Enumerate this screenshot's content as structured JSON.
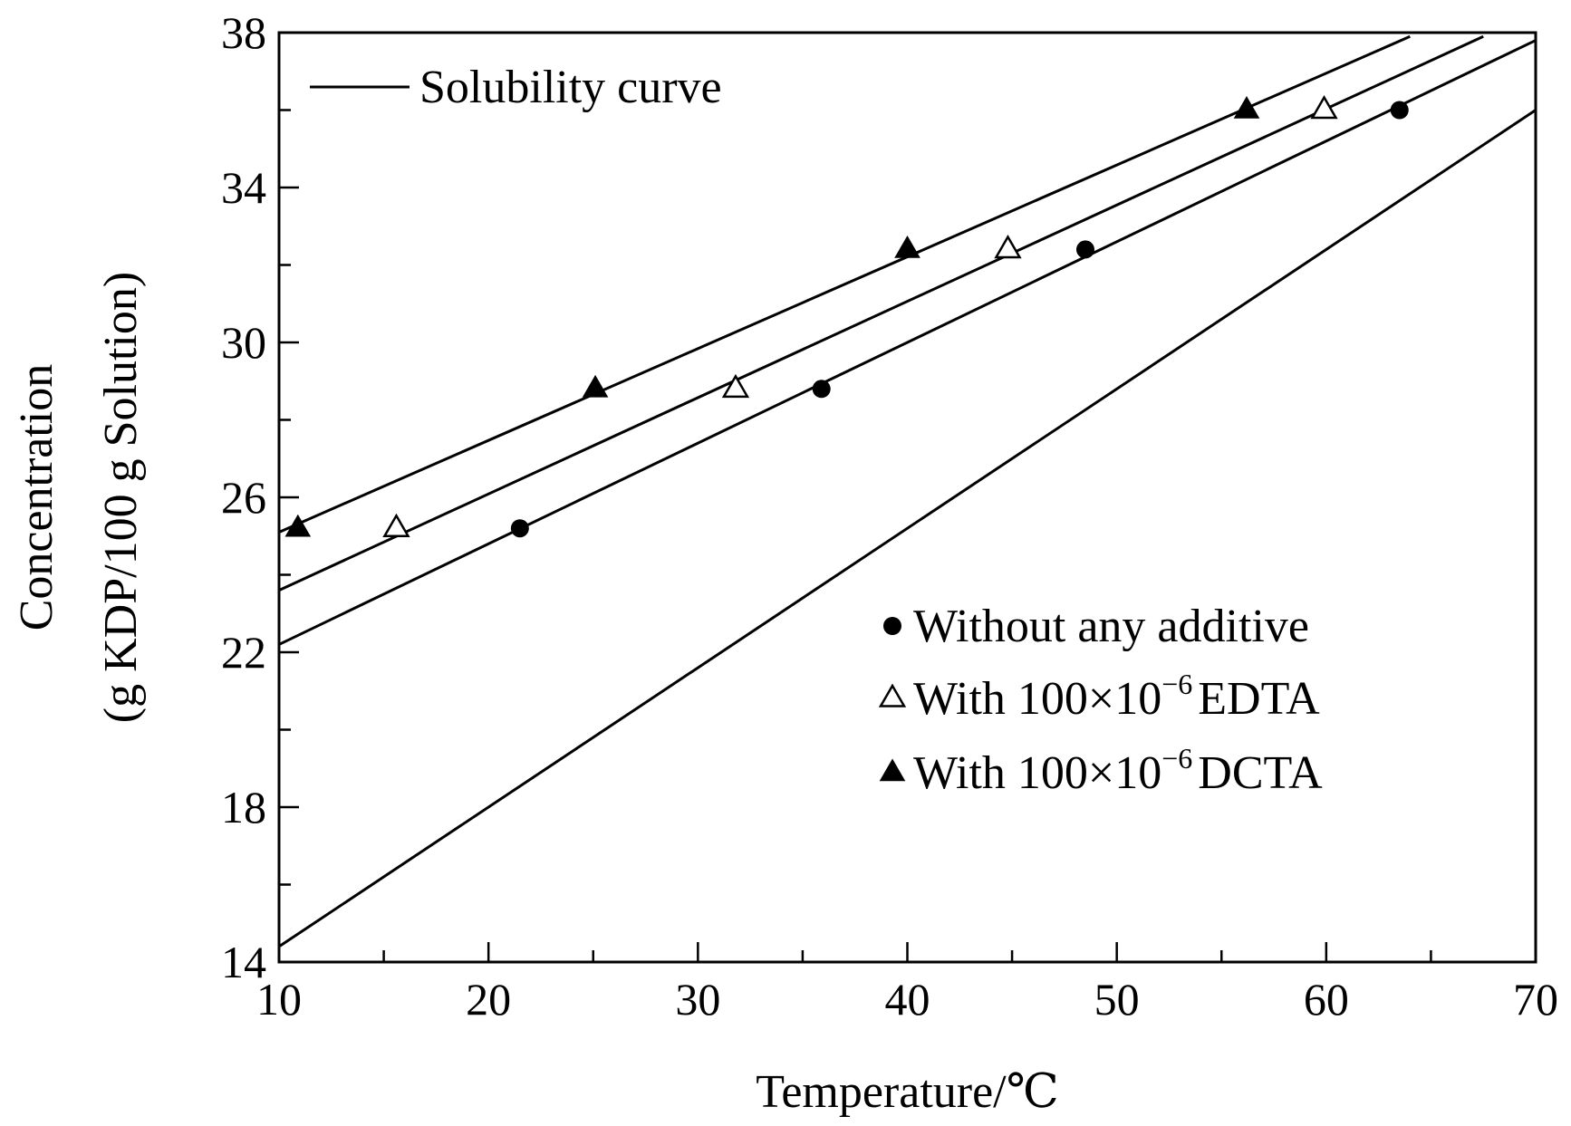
{
  "chart_data": {
    "type": "line",
    "title": "",
    "xlabel": "Temperature/℃",
    "ylabel_line1": "Concentration",
    "ylabel_line2": "(g KDP/100 g Solution)",
    "xlim": [
      10,
      70
    ],
    "ylim": [
      14,
      38
    ],
    "x_ticks": [
      10,
      20,
      30,
      40,
      50,
      60,
      70
    ],
    "y_ticks": [
      14,
      18,
      22,
      26,
      30,
      34,
      38
    ],
    "x_minor_step": 5,
    "y_minor_step": 2,
    "grid": false,
    "line_color": "#000000",
    "lines": [
      {
        "name": "Solubility curve",
        "x": [
          10,
          70
        ],
        "y": [
          14.4,
          36.0
        ]
      },
      {
        "name": "",
        "x": [
          10,
          70
        ],
        "y": [
          22.2,
          37.8
        ]
      },
      {
        "name": "",
        "x": [
          10,
          67.5
        ],
        "y": [
          23.6,
          37.9
        ]
      },
      {
        "name": "",
        "x": [
          10,
          64
        ],
        "y": [
          25.1,
          37.9
        ]
      }
    ],
    "series": [
      {
        "name": "Without any additive",
        "marker": "circle-filled",
        "x": [
          21.5,
          35.9,
          48.5,
          63.5
        ],
        "y": [
          25.2,
          28.8,
          32.4,
          36.0
        ]
      },
      {
        "name": "With 100×10",
        "name_sup": "−6",
        "name_suffix": "EDTA",
        "marker": "triangle-open",
        "x": [
          15.6,
          31.8,
          44.8,
          59.9
        ],
        "y": [
          25.2,
          28.8,
          32.4,
          36.0
        ]
      },
      {
        "name": "With 100×10",
        "name_sup": "−6",
        "name_suffix": "DCTA",
        "marker": "triangle-filled",
        "x": [
          10.9,
          25.1,
          40.0,
          56.2
        ],
        "y": [
          25.2,
          28.8,
          32.4,
          36.0
        ]
      }
    ],
    "legend": {
      "line_entry_placement": "top-left",
      "marker_entries_placement": "bottom-right"
    }
  }
}
